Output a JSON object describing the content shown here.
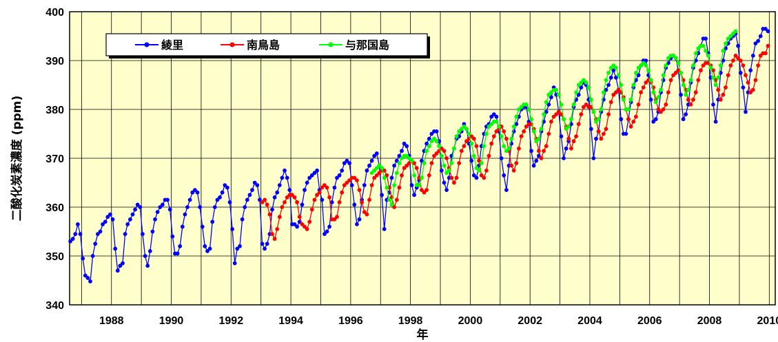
{
  "chart_data": {
    "type": "line",
    "title": "",
    "xlabel": "年",
    "ylabel": "二酸化炭素濃度 (ppm)",
    "xlim": [
      1986.6,
      2010.2
    ],
    "ylim": [
      340,
      400
    ],
    "x_ticks": [
      "1988",
      "1990",
      "1992",
      "1994",
      "1996",
      "1998",
      "2000",
      "2002",
      "2004",
      "2006",
      "2008",
      "2010"
    ],
    "y_ticks": [
      "340",
      "350",
      "360",
      "370",
      "380",
      "390",
      "400"
    ],
    "grid": true,
    "legend_position": "top-left",
    "series": [
      {
        "name": "綾里",
        "color": "#0000ff",
        "start": [
          1986,
          8
        ],
        "end": [
          2010,
          2
        ],
        "values": [
          353.0,
          353.5,
          354.5,
          356.5,
          354.5,
          349.5,
          346.0,
          345.5,
          344.8,
          350.0,
          352.5,
          354.5,
          355.0,
          356.5,
          357.0,
          358.0,
          358.5,
          357.5,
          351.5,
          347.0,
          348.0,
          348.5,
          354.5,
          356.5,
          357.5,
          358.5,
          359.5,
          360.5,
          360.0,
          354.5,
          350.0,
          348.0,
          351.0,
          355.0,
          357.5,
          359.0,
          360.0,
          360.5,
          361.5,
          361.5,
          359.5,
          354.0,
          350.5,
          350.5,
          352.0,
          356.0,
          358.5,
          360.0,
          361.5,
          363.0,
          363.5,
          363.0,
          360.0,
          356.0,
          352.0,
          351.0,
          351.5,
          357.0,
          360.0,
          361.5,
          362.0,
          363.0,
          364.5,
          364.0,
          361.0,
          355.5,
          348.5,
          351.5,
          352.0,
          357.5,
          360.0,
          361.5,
          362.5,
          363.5,
          365.0,
          364.5,
          361.5,
          352.5,
          351.5,
          352.5,
          354.5,
          359.5,
          362.0,
          363.0,
          364.5,
          366.0,
          367.5,
          366.0,
          363.5,
          356.5,
          356.5,
          356.0,
          357.0,
          360.5,
          363.5,
          365.0,
          366.0,
          366.5,
          367.0,
          367.5,
          363.5,
          361.5,
          354.5,
          355.0,
          356.0,
          361.0,
          364.0,
          366.0,
          366.5,
          367.5,
          369.0,
          369.5,
          369.0,
          364.5,
          360.5,
          356.5,
          357.5,
          361.5,
          364.5,
          367.5,
          368.5,
          369.5,
          370.5,
          371.0,
          368.5,
          362.5,
          355.5,
          361.5,
          363.0,
          366.0,
          368.5,
          369.5,
          370.5,
          371.5,
          373.0,
          372.5,
          370.5,
          364.5,
          362.5,
          364.0,
          365.5,
          369.5,
          371.5,
          373.0,
          374.0,
          375.0,
          375.5,
          375.5,
          373.5,
          367.5,
          365.0,
          363.5,
          366.0,
          370.5,
          372.0,
          374.0,
          374.5,
          375.5,
          377.0,
          376.0,
          373.0,
          369.5,
          366.5,
          366.0,
          368.5,
          372.5,
          375.0,
          376.5,
          377.0,
          378.5,
          379.0,
          378.5,
          375.5,
          370.0,
          366.5,
          363.5,
          368.5,
          373.0,
          375.5,
          377.0,
          378.5,
          380.0,
          380.5,
          380.5,
          377.5,
          371.5,
          368.5,
          369.5,
          370.5,
          375.5,
          377.5,
          379.5,
          381.0,
          382.5,
          384.5,
          383.0,
          379.5,
          374.5,
          370.0,
          372.0,
          373.5,
          377.0,
          380.5,
          382.0,
          383.0,
          384.5,
          385.5,
          385.0,
          382.0,
          376.0,
          370.0,
          374.0,
          375.5,
          379.5,
          382.0,
          384.0,
          385.0,
          386.5,
          388.0,
          386.5,
          384.0,
          378.0,
          375.0,
          375.0,
          378.0,
          381.5,
          384.5,
          386.0,
          387.0,
          389.0,
          390.0,
          390.0,
          387.0,
          382.0,
          377.5,
          378.0,
          379.5,
          383.5,
          386.0,
          388.5,
          389.5,
          390.5,
          391.0,
          390.5,
          388.0,
          383.0,
          378.0,
          379.0,
          381.0,
          385.5,
          388.5,
          390.0,
          391.5,
          393.0,
          394.5,
          394.5,
          391.5,
          386.5,
          381.0,
          377.5,
          382.0,
          387.5,
          390.0,
          392.5,
          393.5,
          394.5,
          395.0,
          395.5,
          393.0,
          387.5,
          384.5,
          379.5,
          383.5,
          388.0,
          391.0,
          393.5,
          394.0,
          395.0,
          396.5,
          396.5,
          396.0
        ]
      },
      {
        "name": "南鳥島",
        "color": "#ff0000",
        "start": [
          1993,
          1
        ],
        "end": [
          2010,
          2
        ],
        "values": [
          361.0,
          361.5,
          360.5,
          358.5,
          354.5,
          353.5,
          355.5,
          358.0,
          360.0,
          361.0,
          362.0,
          362.5,
          362.5,
          362.0,
          361.0,
          358.0,
          356.5,
          356.0,
          355.5,
          357.0,
          359.5,
          361.5,
          362.5,
          363.0,
          364.0,
          364.5,
          364.0,
          362.0,
          357.5,
          357.5,
          358.0,
          361.0,
          363.0,
          364.5,
          365.0,
          365.5,
          366.0,
          366.0,
          365.5,
          363.5,
          361.0,
          359.0,
          358.5,
          361.5,
          364.5,
          366.0,
          366.5,
          367.0,
          367.5,
          367.5,
          366.5,
          364.0,
          362.0,
          360.0,
          361.5,
          364.0,
          366.5,
          368.0,
          368.5,
          369.0,
          369.5,
          369.0,
          368.0,
          366.0,
          363.5,
          363.0,
          363.5,
          366.5,
          369.0,
          370.5,
          371.0,
          371.5,
          372.0,
          371.5,
          370.0,
          368.0,
          366.0,
          365.0,
          366.0,
          369.0,
          371.5,
          372.5,
          373.5,
          374.0,
          374.5,
          374.0,
          372.5,
          369.5,
          366.5,
          366.0,
          367.5,
          370.5,
          373.0,
          374.5,
          375.5,
          376.0,
          376.5,
          375.5,
          374.0,
          371.5,
          368.5,
          367.5,
          369.0,
          372.0,
          374.5,
          375.5,
          376.5,
          377.0,
          377.0,
          376.0,
          374.0,
          371.5,
          370.0,
          371.5,
          372.5,
          375.0,
          377.5,
          378.5,
          379.0,
          379.5,
          379.0,
          378.0,
          376.5,
          374.0,
          372.0,
          373.5,
          374.5,
          377.0,
          379.0,
          380.5,
          381.0,
          380.5,
          380.5,
          379.5,
          378.0,
          375.5,
          374.0,
          375.0,
          376.0,
          379.0,
          381.5,
          383.0,
          383.5,
          384.0,
          383.5,
          382.5,
          380.0,
          378.0,
          376.5,
          377.5,
          378.5,
          381.0,
          383.5,
          384.5,
          385.5,
          386.0,
          385.5,
          384.5,
          382.0,
          380.0,
          379.5,
          380.0,
          381.0,
          383.5,
          386.0,
          387.0,
          387.5,
          388.0,
          387.5,
          386.0,
          384.0,
          382.0,
          381.0,
          382.0,
          383.5,
          386.0,
          388.0,
          389.0,
          389.5,
          389.5,
          389.0,
          388.0,
          386.0,
          384.0,
          382.0,
          383.0,
          384.5,
          387.0,
          389.0,
          390.0,
          391.0,
          390.5,
          390.0,
          389.0,
          387.0,
          385.5,
          383.5,
          384.0,
          386.0,
          389.0,
          391.0,
          391.5,
          391.5,
          393.0
        ]
      },
      {
        "name": "与那国島",
        "color": "#00ff00",
        "start": [
          1996,
          9
        ],
        "end": [
          2010,
          2
        ],
        "values": [
          367.0,
          367.5,
          368.0,
          368.5,
          368.0,
          366.0,
          364.0,
          361.5,
          360.5,
          364.5,
          367.0,
          369.0,
          370.0,
          370.5,
          370.5,
          370.0,
          369.5,
          366.5,
          364.5,
          364.5,
          366.0,
          369.0,
          371.5,
          372.5,
          373.5,
          374.0,
          373.5,
          372.5,
          370.5,
          368.5,
          367.0,
          367.5,
          369.0,
          372.0,
          374.5,
          375.5,
          376.0,
          376.5,
          376.0,
          375.0,
          373.0,
          370.5,
          368.0,
          367.5,
          369.0,
          372.5,
          375.0,
          376.5,
          377.0,
          377.5,
          377.5,
          376.5,
          374.5,
          372.5,
          371.5,
          372.0,
          374.0,
          376.5,
          378.5,
          380.0,
          380.5,
          381.0,
          381.0,
          380.0,
          378.0,
          375.5,
          373.5,
          374.0,
          376.0,
          379.0,
          381.5,
          383.0,
          383.5,
          384.0,
          384.0,
          383.0,
          381.0,
          378.0,
          376.0,
          376.5,
          378.0,
          381.0,
          383.5,
          385.0,
          385.5,
          386.0,
          385.5,
          384.5,
          382.0,
          379.5,
          377.5,
          378.0,
          380.0,
          383.5,
          386.0,
          387.5,
          388.5,
          389.0,
          388.5,
          387.0,
          385.0,
          382.0,
          380.0,
          380.0,
          382.0,
          385.0,
          387.5,
          388.5,
          389.0,
          389.5,
          389.0,
          388.0,
          386.0,
          383.5,
          381.5,
          382.5,
          384.0,
          387.0,
          389.0,
          390.5,
          391.0,
          391.0,
          390.5,
          389.5,
          387.5,
          385.0,
          383.0,
          384.0,
          386.0,
          389.0,
          391.5,
          392.5,
          393.0,
          393.0,
          392.0,
          391.0,
          388.5,
          386.5,
          385.0,
          386.5,
          389.0,
          392.0,
          393.5,
          394.5,
          395.0,
          395.5,
          396.0
        ]
      }
    ]
  }
}
